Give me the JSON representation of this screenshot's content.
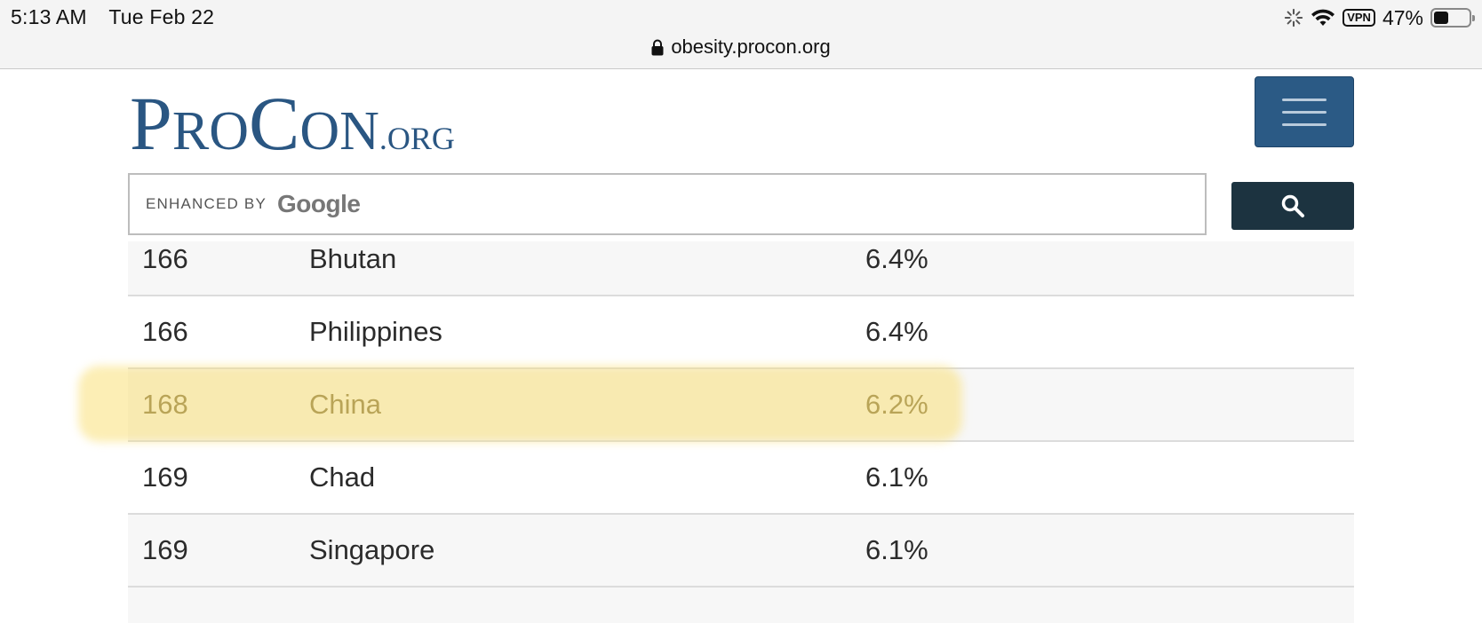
{
  "status_bar": {
    "time": "5:13 AM",
    "date": "Tue Feb 22",
    "vpn": "VPN",
    "battery_percent": "47%",
    "battery_level": 0.47
  },
  "browser": {
    "url": "obesity.procon.org"
  },
  "site": {
    "logo": {
      "p": "P",
      "ro": "RO",
      "c": "C",
      "on": "ON",
      "org": ".ORG"
    },
    "search": {
      "enhanced_by": "ENHANCED BY",
      "google": "Google"
    }
  },
  "icons": {
    "lock": "lock-icon",
    "wifi": "wifi-icon",
    "activity": "activity-icon",
    "menu": "hamburger-icon",
    "search": "search-icon"
  },
  "colors": {
    "brand_blue": "#2a5682",
    "menu_button": "#2b5a85",
    "search_button": "#1c3340",
    "highlight": "#fae078"
  },
  "table": {
    "rows": [
      {
        "rank": "166",
        "country": "Bhutan",
        "percent": "6.4%"
      },
      {
        "rank": "166",
        "country": "Philippines",
        "percent": "6.4%"
      },
      {
        "rank": "168",
        "country": "China",
        "percent": "6.2%"
      },
      {
        "rank": "169",
        "country": "Chad",
        "percent": "6.1%"
      },
      {
        "rank": "169",
        "country": "Singapore",
        "percent": "6.1%"
      }
    ]
  }
}
